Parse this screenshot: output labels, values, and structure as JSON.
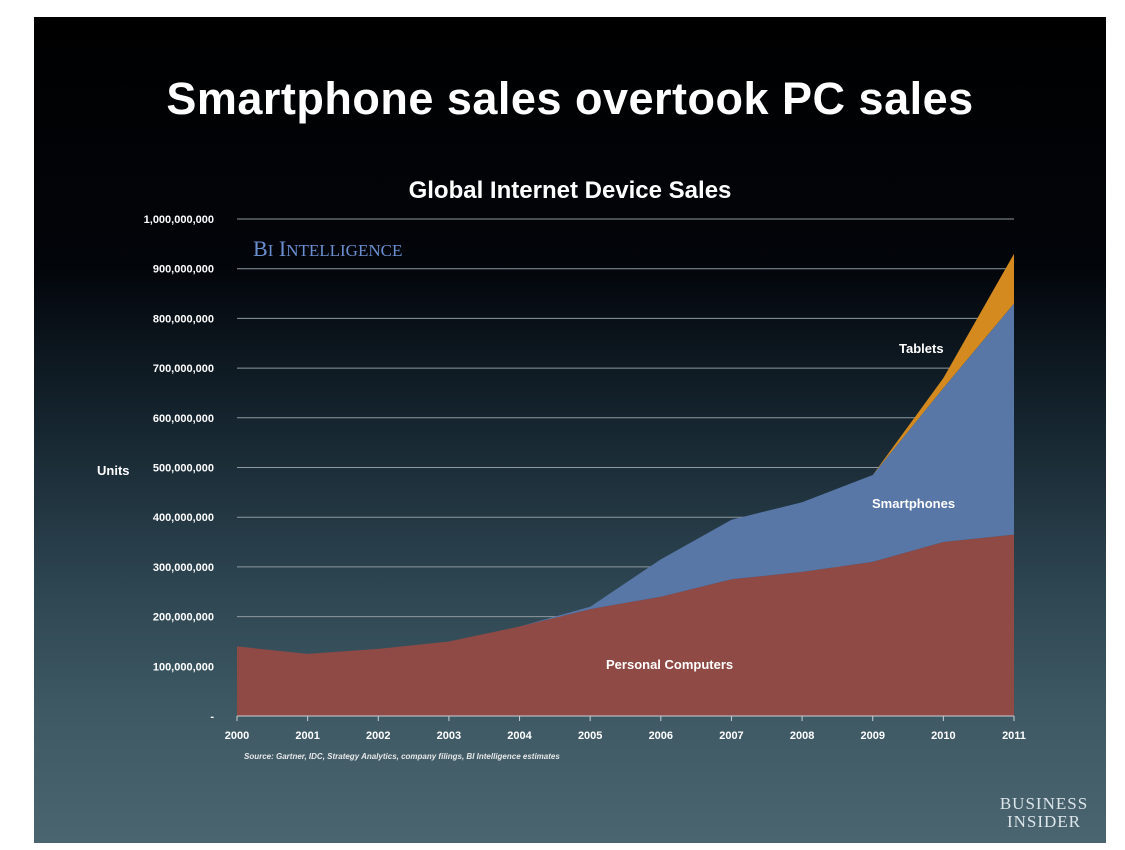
{
  "slide": {
    "title": "Smartphone sales overtook PC sales"
  },
  "watermark": "BI Intelligence",
  "footnote": "Source: Gartner, IDC, Strategy Analytics, company filings, BI Intelligence estimates",
  "brand": {
    "line1": "Business",
    "line2": "Insider"
  },
  "colors": {
    "pc": "#8f4a45",
    "smartphones": "#5876a6",
    "tablets": "#d48a1e",
    "grid": "#8e9aa0"
  },
  "chart_data": {
    "type": "area",
    "stacked": true,
    "title": "Global Internet Device Sales",
    "ylabel": "Units",
    "xlabel": "",
    "x": [
      2000,
      2001,
      2002,
      2003,
      2004,
      2005,
      2006,
      2007,
      2008,
      2009,
      2010,
      2011
    ],
    "ylim": [
      0,
      1000000000
    ],
    "y_ticks": [
      0,
      100000000,
      200000000,
      300000000,
      400000000,
      500000000,
      600000000,
      700000000,
      800000000,
      900000000,
      1000000000
    ],
    "y_tick_labels": [
      "-",
      "100,000,000",
      "200,000,000",
      "300,000,000",
      "400,000,000",
      "500,000,000",
      "600,000,000",
      "700,000,000",
      "800,000,000",
      "900,000,000",
      "1,000,000,000"
    ],
    "grid": true,
    "legend": "inline labels",
    "series": [
      {
        "name": "Personal Computers",
        "values": [
          140000000,
          125000000,
          135000000,
          150000000,
          180000000,
          215000000,
          240000000,
          275000000,
          290000000,
          310000000,
          350000000,
          365000000
        ]
      },
      {
        "name": "Smartphones",
        "values": [
          0,
          0,
          0,
          0,
          0,
          5000000,
          75000000,
          120000000,
          140000000,
          175000000,
          310000000,
          465000000
        ]
      },
      {
        "name": "Tablets",
        "values": [
          0,
          0,
          0,
          0,
          0,
          0,
          0,
          0,
          0,
          0,
          20000000,
          100000000
        ]
      }
    ]
  }
}
